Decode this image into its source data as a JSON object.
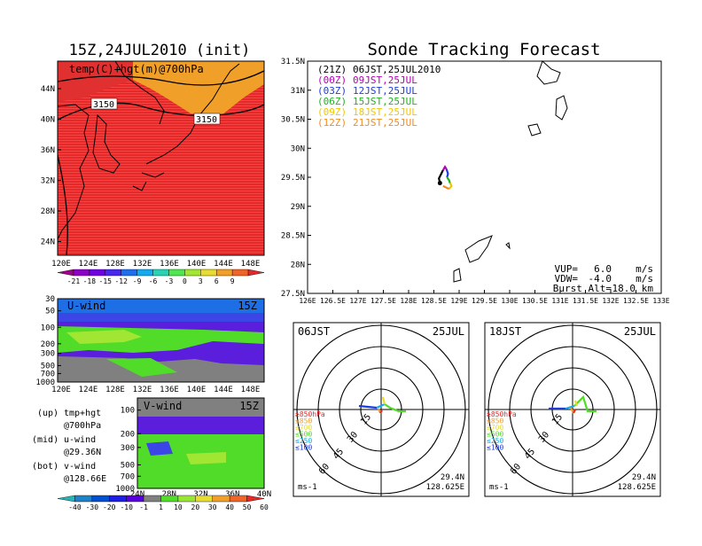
{
  "left": {
    "title": "15Z,24JUL2010 (init)",
    "map_label": "temp(C)+hgt(m)@700hPa",
    "contour_labels": [
      "3150",
      "3150"
    ],
    "lat_ticks": [
      "44N",
      "40N",
      "36N",
      "32N",
      "28N",
      "24N"
    ],
    "lon_ticks": [
      "120E",
      "124E",
      "128E",
      "132E",
      "136E",
      "140E",
      "144E",
      "148E"
    ],
    "temp_colorbar": [
      "-21",
      "-18",
      "-15",
      "-12",
      "-9",
      "-6",
      "-3",
      "0",
      "3",
      "6",
      "9"
    ],
    "temp_colors": [
      "#a0008c",
      "#8c00c8",
      "#6e00e6",
      "#4628f0",
      "#1e6ef0",
      "#14aaf0",
      "#28d2b4",
      "#50e650",
      "#a0e632",
      "#e6dc32",
      "#f0a028",
      "#f06428",
      "#e62828"
    ],
    "u_panel": {
      "label": "U-wind",
      "time": "15Z",
      "p_ticks": [
        "30",
        "50",
        "100",
        "200",
        "300",
        "500",
        "700",
        "1000"
      ]
    },
    "v_panel": {
      "label": "V-wind",
      "time": "15Z",
      "p_ticks": [
        "100",
        "200",
        "300",
        "500",
        "700",
        "1000"
      ],
      "lat_ticks": [
        "24N",
        "28N",
        "32N",
        "36N",
        "40N"
      ]
    },
    "notes": [
      {
        "key": "(up)",
        "text": "tmp+hgt",
        "sub": "@700hPa"
      },
      {
        "key": "(mid)",
        "text": "u-wind",
        "sub": "@29.36N"
      },
      {
        "key": "(bot)",
        "text": "v-wind",
        "sub": "@128.66E"
      }
    ],
    "wind_colorbar": [
      "-40",
      "-30",
      "-20",
      "-10",
      "-1",
      "1",
      "10",
      "20",
      "30",
      "40",
      "50",
      "60"
    ],
    "wind_colors": [
      "#28b4b4",
      "#1e82c8",
      "#0050d2",
      "#1e1ee6",
      "#5a00dc",
      "#808080",
      "#50dc28",
      "#96e632",
      "#e6dc32",
      "#f0a028",
      "#f06428",
      "#e62828"
    ]
  },
  "right": {
    "title": "Sonde Tracking Forecast",
    "launch": {
      "code": "(21Z)",
      "text": "06JST,25JUL2010",
      "color": "#000000"
    },
    "legend": [
      {
        "code": "(00Z)",
        "text": "09JST,25JUL",
        "color": "#b400b4"
      },
      {
        "code": "(03Z)",
        "text": "12JST,25JUL",
        "color": "#1e3cdc"
      },
      {
        "code": "(06Z)",
        "text": "15JST,25JUL",
        "color": "#1eb41e"
      },
      {
        "code": "(09Z)",
        "text": "18JST,25JUL",
        "color": "#f0c800"
      },
      {
        "code": "(12Z)",
        "text": "21JST,25JUL",
        "color": "#f08c1e"
      }
    ],
    "lat_ticks": [
      "31.5N",
      "31N",
      "30.5N",
      "30N",
      "29.5N",
      "29N",
      "28.5N",
      "28N",
      "27.5N"
    ],
    "lon_ticks": [
      "126E",
      "126.5E",
      "127E",
      "127.5E",
      "128E",
      "128.5E",
      "129E",
      "129.5E",
      "130E",
      "130.5E",
      "131E",
      "131.5E",
      "132E",
      "132.5E",
      "133E"
    ],
    "params": [
      {
        "label": "VUP=",
        "value": "6.0",
        "unit": "m/s"
      },
      {
        "label": "VDW=",
        "value": "-4.0",
        "unit": "m/s"
      },
      {
        "label": "Burst Alt=",
        "value": "18.0",
        "unit": "km"
      }
    ]
  },
  "hodographs": [
    {
      "time": "06JST",
      "date": "25JUL",
      "lat": "29.4N",
      "lon": "128.625E",
      "unit": "ms-1",
      "rings": [
        "15",
        "30",
        "45",
        "60"
      ],
      "levels": [
        {
          "label": "≥850hPa",
          "color": "#e62828"
        },
        {
          "label": "≤850",
          "color": "#f0a028"
        },
        {
          "label": "≤700",
          "color": "#e6dc32"
        },
        {
          "label": "≤500",
          "color": "#50dc28"
        },
        {
          "label": "≤250",
          "color": "#14aaf0"
        },
        {
          "label": "≤100",
          "color": "#1e3cdc"
        }
      ]
    },
    {
      "time": "18JST",
      "date": "25JUL",
      "lat": "29.4N",
      "lon": "128.625E",
      "unit": "ms-1",
      "rings": [
        "15",
        "30",
        "45",
        "60"
      ],
      "levels": [
        {
          "label": "≥850hPa",
          "color": "#e62828"
        },
        {
          "label": "≤850",
          "color": "#f0a028"
        },
        {
          "label": "≤700",
          "color": "#e6dc32"
        },
        {
          "label": "≤500",
          "color": "#50dc28"
        },
        {
          "label": "≤250",
          "color": "#14aaf0"
        },
        {
          "label": "≤100",
          "color": "#1e3cdc"
        }
      ]
    }
  ],
  "chart_data": [
    {
      "type": "heatmap",
      "title": "15Z,24JUL2010 (init)",
      "xlabel": "",
      "ylabel": "",
      "xlim": [
        "120E",
        "148E"
      ],
      "ylim": [
        "24N",
        "44N"
      ],
      "field": "temp(C)+hgt(m)@700hPa",
      "contour_values": [
        3150
      ],
      "colorbar": [
        -21,
        -18,
        -15,
        -12,
        -9,
        -6,
        -3,
        0,
        3,
        6,
        9
      ]
    },
    {
      "type": "heatmap",
      "title": "U-wind",
      "xlim": [
        "120E",
        "148E"
      ],
      "ylim": [
        1000,
        30
      ],
      "y_scale": "log",
      "colorbar": [
        -40,
        -30,
        -20,
        -10,
        -1,
        1,
        10,
        20,
        30,
        40,
        50,
        60
      ]
    },
    {
      "type": "heatmap",
      "title": "V-wind",
      "xlim": [
        "24N",
        "40N"
      ],
      "ylim": [
        1000,
        100
      ],
      "y_scale": "log",
      "colorbar": [
        -40,
        -30,
        -20,
        -10,
        -1,
        1,
        10,
        20,
        30,
        40,
        50,
        60
      ]
    },
    {
      "type": "line",
      "title": "Sonde Tracking Forecast",
      "xlim": [
        126,
        133
      ],
      "ylim": [
        27.5,
        31.5
      ],
      "series": [
        {
          "name": "(21Z) 06JST,25JUL2010",
          "color": "#000000",
          "x": [
            128.62,
            128.6,
            128.64,
            128.68
          ],
          "y": [
            29.4,
            29.48,
            29.55,
            29.62
          ]
        },
        {
          "name": "(00Z) 09JST,25JUL",
          "color": "#b400b4",
          "x": [
            128.68,
            128.72,
            128.75
          ],
          "y": [
            29.62,
            29.68,
            29.64
          ]
        },
        {
          "name": "(03Z) 12JST,25JUL",
          "color": "#1e3cdc",
          "x": [
            128.75,
            128.78,
            128.76
          ],
          "y": [
            29.64,
            29.56,
            29.5
          ]
        },
        {
          "name": "(06Z) 15JST,25JUL",
          "color": "#1eb41e",
          "x": [
            128.76,
            128.8,
            128.82
          ],
          "y": [
            29.5,
            29.45,
            29.4
          ]
        },
        {
          "name": "(09Z) 18JST,25JUL",
          "color": "#f0c800",
          "x": [
            128.82,
            128.85,
            128.8
          ],
          "y": [
            29.4,
            29.35,
            29.3
          ]
        },
        {
          "name": "(12Z) 21JST,25JUL",
          "color": "#f08c1e",
          "x": [
            128.8,
            128.75,
            128.68
          ],
          "y": [
            29.3,
            29.32,
            29.35
          ]
        }
      ]
    }
  ]
}
